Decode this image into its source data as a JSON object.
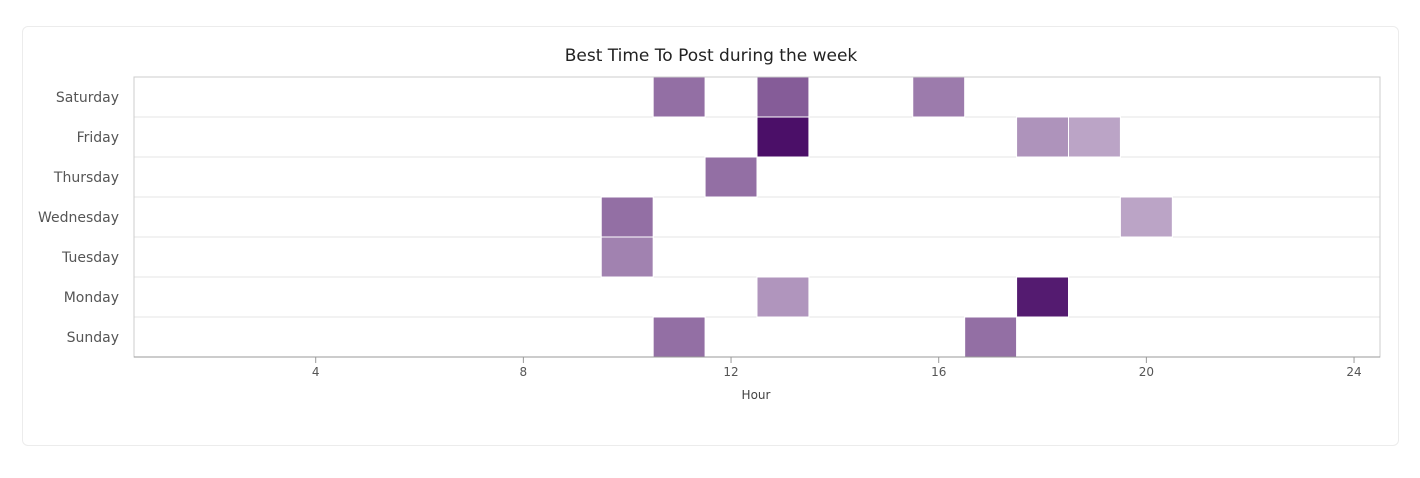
{
  "chart_data": {
    "type": "heatmap",
    "title": "Best Time To Post during the week",
    "xlabel": "Hour",
    "ylabel": "",
    "xlim": [
      0.5,
      24.5
    ],
    "x_ticks": [
      4,
      8,
      12,
      16,
      20,
      24
    ],
    "x_tick_labels": [
      "4",
      "8",
      "12",
      "16",
      "20",
      "24"
    ],
    "rows": [
      "Saturday",
      "Friday",
      "Thursday",
      "Wednesday",
      "Tuesday",
      "Monday",
      "Sunday"
    ],
    "cells": [
      {
        "day": "Saturday",
        "hour": 11,
        "value": 0.6
      },
      {
        "day": "Saturday",
        "hour": 13,
        "value": 0.68
      },
      {
        "day": "Saturday",
        "hour": 16,
        "value": 0.55
      },
      {
        "day": "Friday",
        "hour": 13,
        "value": 1.0
      },
      {
        "day": "Friday",
        "hour": 18,
        "value": 0.45
      },
      {
        "day": "Friday",
        "hour": 19,
        "value": 0.38
      },
      {
        "day": "Thursday",
        "hour": 12,
        "value": 0.6
      },
      {
        "day": "Wednesday",
        "hour": 10,
        "value": 0.6
      },
      {
        "day": "Wednesday",
        "hour": 20,
        "value": 0.38
      },
      {
        "day": "Tuesday",
        "hour": 10,
        "value": 0.52
      },
      {
        "day": "Monday",
        "hour": 13,
        "value": 0.44
      },
      {
        "day": "Monday",
        "hour": 18,
        "value": 0.95
      },
      {
        "day": "Sunday",
        "hour": 11,
        "value": 0.6
      },
      {
        "day": "Sunday",
        "hour": 17,
        "value": 0.6
      }
    ],
    "color_max": "#4b0f68",
    "color_min": "#ffffff",
    "grid": true
  }
}
